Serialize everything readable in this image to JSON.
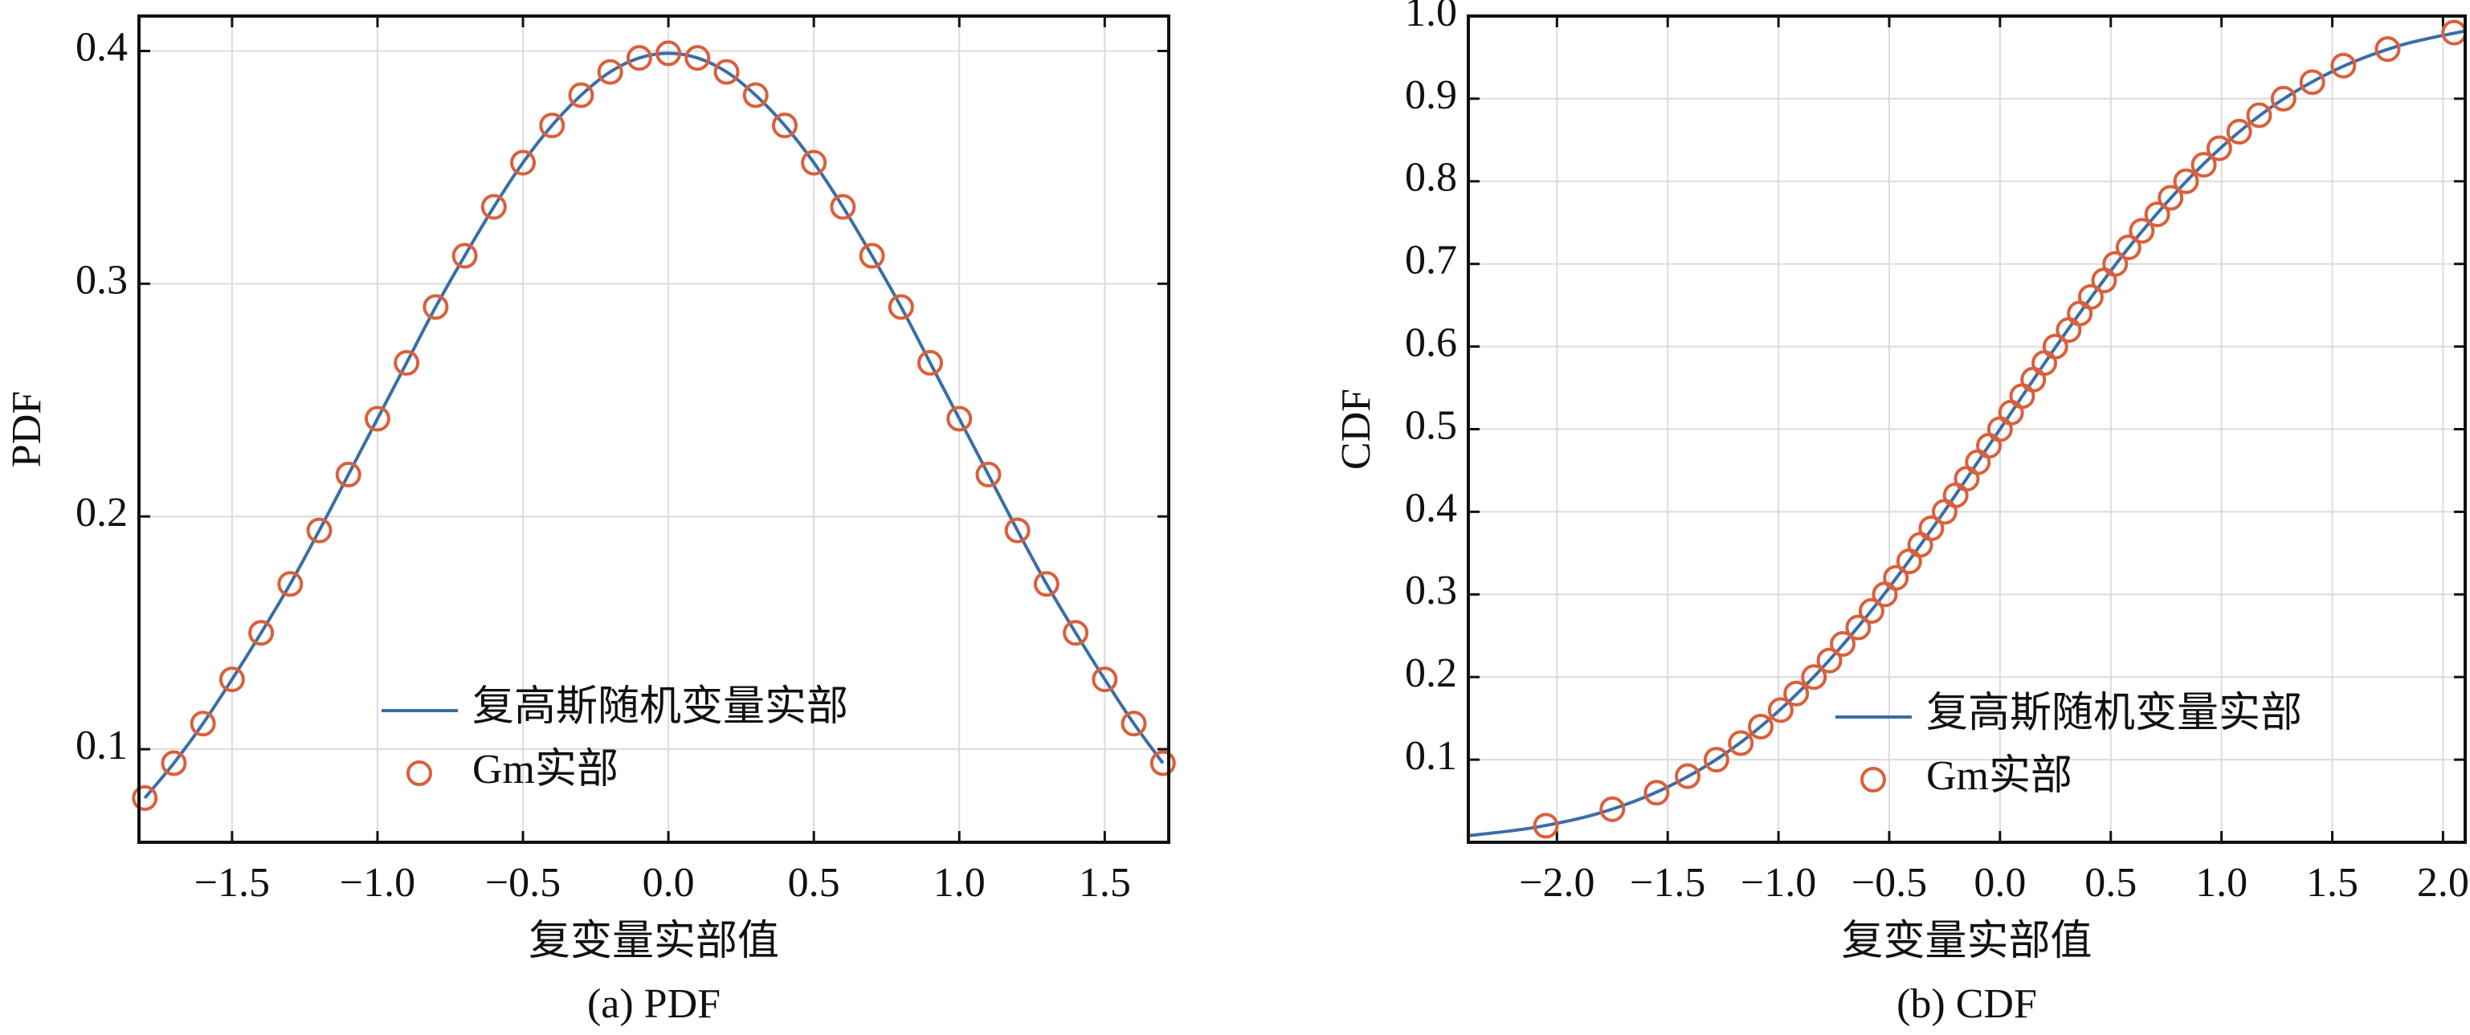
{
  "chart_data": [
    {
      "type": "line",
      "caption": "(a) PDF",
      "x_label": "复变量实部值",
      "y_label": "PDF",
      "xlim": [
        -1.82,
        1.72
      ],
      "ylim": [
        0.06,
        0.415
      ],
      "xticks": [
        {
          "value": -1.5,
          "label": "−1.5"
        },
        {
          "value": -1.0,
          "label": "−1.0"
        },
        {
          "value": -0.5,
          "label": "−0.5"
        },
        {
          "value": 0,
          "label": "0.0"
        },
        0.5,
        {
          "value": 1.0,
          "label": "1.0"
        },
        1.5
      ],
      "yticks": [
        0.1,
        0.2,
        0.3,
        0.4
      ],
      "grid": true,
      "legend": "lower right",
      "series": [
        {
          "name": "复高斯随机变量实部",
          "color": "#3a6ea5",
          "style": "line",
          "x": [
            -1.8,
            -1.7,
            -1.6,
            -1.5,
            -1.4,
            -1.3,
            -1.2,
            -1.1,
            -1.0,
            -0.9,
            -0.8,
            -0.7,
            -0.6,
            -0.5,
            -0.4,
            -0.3,
            -0.2,
            -0.1,
            0.0,
            0.1,
            0.2,
            0.3,
            0.4,
            0.5,
            0.6,
            0.7,
            0.8,
            0.9,
            1.0,
            1.1,
            1.2,
            1.3,
            1.4,
            1.5,
            1.6,
            1.7
          ],
          "values": [
            0.079,
            0.094,
            0.111,
            0.13,
            0.15,
            0.171,
            0.194,
            0.218,
            0.242,
            0.266,
            0.29,
            0.312,
            0.333,
            0.352,
            0.368,
            0.381,
            0.391,
            0.397,
            0.399,
            0.397,
            0.391,
            0.381,
            0.368,
            0.352,
            0.333,
            0.312,
            0.29,
            0.266,
            0.242,
            0.218,
            0.194,
            0.171,
            0.15,
            0.13,
            0.111,
            0.094
          ]
        },
        {
          "name": "Gm实部",
          "color": "#d9603b",
          "style": "marker",
          "x": [
            -1.8,
            -1.7,
            -1.6,
            -1.5,
            -1.4,
            -1.3,
            -1.2,
            -1.1,
            -1.0,
            -0.9,
            -0.8,
            -0.7,
            -0.6,
            -0.5,
            -0.4,
            -0.3,
            -0.2,
            -0.1,
            0.0,
            0.1,
            0.2,
            0.3,
            0.4,
            0.5,
            0.6,
            0.7,
            0.8,
            0.9,
            1.0,
            1.1,
            1.2,
            1.3,
            1.4,
            1.5,
            1.6,
            1.7
          ],
          "values": [
            0.079,
            0.094,
            0.111,
            0.13,
            0.15,
            0.171,
            0.194,
            0.218,
            0.242,
            0.266,
            0.29,
            0.312,
            0.333,
            0.352,
            0.368,
            0.381,
            0.391,
            0.397,
            0.399,
            0.397,
            0.391,
            0.381,
            0.368,
            0.352,
            0.333,
            0.312,
            0.29,
            0.266,
            0.242,
            0.218,
            0.194,
            0.171,
            0.15,
            0.13,
            0.111,
            0.094
          ]
        }
      ]
    },
    {
      "type": "line",
      "caption": "(b) CDF",
      "x_label": "复变量实部值",
      "y_label": "CDF",
      "xlim": [
        -2.4,
        2.1
      ],
      "ylim": [
        0,
        1.0
      ],
      "xticks": [
        {
          "value": -2.0,
          "label": "−2.0"
        },
        {
          "value": -1.5,
          "label": "−1.5"
        },
        {
          "value": -1.0,
          "label": "−1.0"
        },
        {
          "value": -0.5,
          "label": "−0.5"
        },
        {
          "value": 0,
          "label": "0.0"
        },
        0.5,
        {
          "value": 1.0,
          "label": "1.0"
        },
        1.5,
        {
          "value": 2.0,
          "label": "2.0"
        }
      ],
      "yticks": [
        0.1,
        0.2,
        0.3,
        0.4,
        0.5,
        0.6,
        0.7,
        0.8,
        0.9,
        {
          "value": 1.0,
          "label": "1.0"
        }
      ],
      "grid": true,
      "legend": "lower right",
      "series": [
        {
          "name": "复高斯随机变量实部",
          "color": "#3a6ea5",
          "style": "line",
          "x": [
            -2.4,
            -2.1,
            -1.8,
            -1.5,
            -1.2,
            -0.9,
            -0.6,
            -0.3,
            0,
            0.3,
            0.6,
            0.9,
            1.2,
            1.5,
            1.8,
            2.1
          ],
          "values": [
            0.008,
            0.018,
            0.036,
            0.067,
            0.115,
            0.184,
            0.274,
            0.382,
            0.5,
            0.618,
            0.726,
            0.816,
            0.885,
            0.933,
            0.964,
            0.982
          ]
        },
        {
          "name": "Gm实部",
          "color": "#d9603b",
          "style": "marker",
          "x": [
            -2.05,
            -1.75,
            -1.55,
            -1.41,
            -1.28,
            -1.17,
            -1.08,
            -0.99,
            -0.92,
            -0.84,
            -0.77,
            -0.71,
            -0.64,
            -0.58,
            -0.52,
            -0.47,
            -0.41,
            -0.36,
            -0.31,
            -0.25,
            -0.2,
            -0.15,
            -0.1,
            -0.05,
            0,
            0.05,
            0.1,
            0.15,
            0.2,
            0.25,
            0.31,
            0.36,
            0.41,
            0.47,
            0.52,
            0.58,
            0.64,
            0.71,
            0.77,
            0.84,
            0.92,
            0.99,
            1.08,
            1.17,
            1.28,
            1.41,
            1.55,
            1.75,
            2.05
          ],
          "values": [
            0.02,
            0.04,
            0.06,
            0.08,
            0.1,
            0.12,
            0.14,
            0.16,
            0.18,
            0.2,
            0.22,
            0.24,
            0.26,
            0.28,
            0.3,
            0.32,
            0.34,
            0.36,
            0.38,
            0.4,
            0.42,
            0.44,
            0.46,
            0.48,
            0.5,
            0.52,
            0.54,
            0.56,
            0.58,
            0.6,
            0.62,
            0.64,
            0.66,
            0.68,
            0.7,
            0.72,
            0.74,
            0.76,
            0.78,
            0.8,
            0.82,
            0.84,
            0.86,
            0.88,
            0.9,
            0.92,
            0.94,
            0.96,
            0.98
          ]
        }
      ]
    }
  ]
}
